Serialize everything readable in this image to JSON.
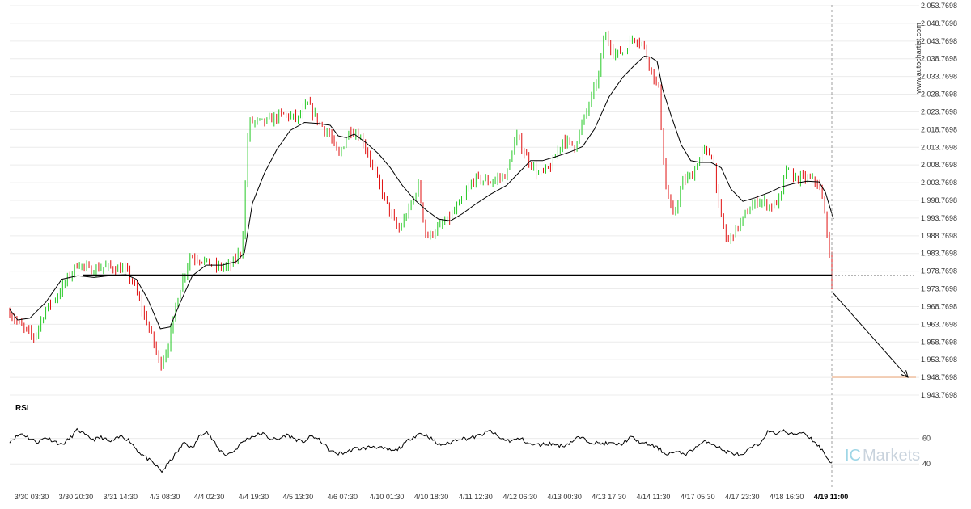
{
  "watermark": "www.autochartist.com",
  "brand": {
    "prefix": "IC",
    "name": "Markets"
  },
  "colors": {
    "up_candle": "#26c926",
    "down_candle": "#e01010",
    "moving_average": "#000000",
    "support_line": "#000000",
    "target_line": "#e8a070",
    "projection_arrow": "#000000"
  },
  "chart_data": [
    {
      "type": "candlestick",
      "title": "",
      "y_tick_labels": [
        "2,053.7698",
        "2,048.7698",
        "2,043.7698",
        "2,038.7698",
        "2,033.7698",
        "2,028.7698",
        "2,023.7698",
        "2,018.7698",
        "2,013.7698",
        "2,008.7698",
        "2,003.7698",
        "1,998.7698",
        "1,993.7698",
        "1,988.7698",
        "1,983.7698",
        "1,978.7698",
        "1,973.7698",
        "1,968.7698",
        "1,963.7698",
        "1,958.7698",
        "1,953.7698",
        "1,948.7698",
        "1,943.7698"
      ],
      "ylim": [
        1943.7698,
        2053.7698
      ],
      "x_tick_labels": [
        "3/30 03:30",
        "3/30 20:30",
        "3/31 14:30",
        "4/3 08:30",
        "4/4 02:30",
        "4/4 19:30",
        "4/5 13:30",
        "4/6 07:30",
        "4/10 01:30",
        "4/10 18:30",
        "4/11 12:30",
        "4/12 06:30",
        "4/13 00:30",
        "4/13 17:30",
        "4/14 11:30",
        "4/17 05:30",
        "4/17 23:30",
        "4/18 16:30",
        "4/19 11:00"
      ],
      "current_x_label": "4/19 11:00",
      "support_level": 1977.6,
      "target_level": 1948.8,
      "moving_average_keypoints": [
        [
          0,
          1968.0
        ],
        [
          10,
          1965.0
        ],
        [
          25,
          1965.5
        ],
        [
          45,
          1970.0
        ],
        [
          65,
          1976.5
        ],
        [
          85,
          1977.5
        ],
        [
          105,
          1977.0
        ],
        [
          125,
          1977.5
        ],
        [
          145,
          1977.8
        ],
        [
          158,
          1976.5
        ],
        [
          172,
          1971.0
        ],
        [
          188,
          1962.5
        ],
        [
          200,
          1963.0
        ],
        [
          212,
          1969.5
        ],
        [
          228,
          1977.5
        ],
        [
          245,
          1980.5
        ],
        [
          265,
          1980.5
        ],
        [
          283,
          1981.5
        ],
        [
          293,
          1984.0
        ],
        [
          303,
          1998.0
        ],
        [
          318,
          2006.5
        ],
        [
          333,
          2013.0
        ],
        [
          350,
          2018.5
        ],
        [
          368,
          2020.8
        ],
        [
          385,
          2020.5
        ],
        [
          400,
          2020.0
        ],
        [
          410,
          2017.0
        ],
        [
          420,
          2016.5
        ],
        [
          430,
          2017.5
        ],
        [
          445,
          2015.0
        ],
        [
          460,
          2012.0
        ],
        [
          475,
          2008.0
        ],
        [
          490,
          2003.0
        ],
        [
          505,
          1999.0
        ],
        [
          520,
          1996.0
        ],
        [
          535,
          1993.5
        ],
        [
          550,
          1993.0
        ],
        [
          565,
          1995.0
        ],
        [
          580,
          1997.5
        ],
        [
          600,
          2000.5
        ],
        [
          620,
          2003.0
        ],
        [
          635,
          2006.5
        ],
        [
          650,
          2010.0
        ],
        [
          665,
          2010.0
        ],
        [
          680,
          2011.0
        ],
        [
          700,
          2012.5
        ],
        [
          715,
          2014.0
        ],
        [
          730,
          2019.0
        ],
        [
          748,
          2028.0
        ],
        [
          765,
          2033.5
        ],
        [
          780,
          2037.0
        ],
        [
          792,
          2039.5
        ],
        [
          800,
          2039.2
        ],
        [
          808,
          2038.0
        ],
        [
          815,
          2030.0
        ],
        [
          825,
          2023.0
        ],
        [
          838,
          2014.5
        ],
        [
          850,
          2010.0
        ],
        [
          862,
          2009.5
        ],
        [
          875,
          2009.5
        ],
        [
          888,
          2008.0
        ],
        [
          900,
          2002.0
        ],
        [
          915,
          1998.5
        ],
        [
          930,
          1999.5
        ],
        [
          948,
          2001.0
        ],
        [
          962,
          2002.5
        ],
        [
          978,
          2003.5
        ],
        [
          995,
          2004.2
        ],
        [
          1010,
          2004.0
        ],
        [
          1018,
          2001.0
        ],
        [
          1028,
          1993.5
        ]
      ],
      "price_path_keypoints": [
        [
          0,
          1967
        ],
        [
          15,
          1963
        ],
        [
          30,
          1960
        ],
        [
          45,
          1968
        ],
        [
          60,
          1972
        ],
        [
          70,
          1976
        ],
        [
          85,
          1981
        ],
        [
          100,
          1979
        ],
        [
          120,
          1980
        ],
        [
          145,
          1979
        ],
        [
          155,
          1975
        ],
        [
          165,
          1968
        ],
        [
          175,
          1962
        ],
        [
          188,
          1952
        ],
        [
          198,
          1958
        ],
        [
          210,
          1972
        ],
        [
          225,
          1983
        ],
        [
          240,
          1982
        ],
        [
          258,
          1980
        ],
        [
          275,
          1980
        ],
        [
          290,
          1985
        ],
        [
          298,
          2021
        ],
        [
          320,
          2021
        ],
        [
          340,
          2023
        ],
        [
          360,
          2022
        ],
        [
          372,
          2026
        ],
        [
          385,
          2021
        ],
        [
          400,
          2017
        ],
        [
          410,
          2011
        ],
        [
          425,
          2019
        ],
        [
          440,
          2016
        ],
        [
          455,
          2007
        ],
        [
          470,
          1998
        ],
        [
          485,
          1990
        ],
        [
          500,
          1997
        ],
        [
          510,
          2003
        ],
        [
          520,
          1988
        ],
        [
          535,
          1991
        ],
        [
          550,
          1994
        ],
        [
          565,
          1999
        ],
        [
          580,
          2005
        ],
        [
          600,
          2004
        ],
        [
          620,
          2006
        ],
        [
          632,
          2017
        ],
        [
          645,
          2011
        ],
        [
          660,
          2006
        ],
        [
          675,
          2008
        ],
        [
          690,
          2016
        ],
        [
          705,
          2014
        ],
        [
          720,
          2024
        ],
        [
          735,
          2034
        ],
        [
          742,
          2046
        ],
        [
          755,
          2040
        ],
        [
          768,
          2041
        ],
        [
          778,
          2045
        ],
        [
          790,
          2043
        ],
        [
          800,
          2036
        ],
        [
          810,
          2030
        ],
        [
          818,
          2003
        ],
        [
          828,
          1994
        ],
        [
          840,
          2004
        ],
        [
          852,
          2006
        ],
        [
          865,
          2013
        ],
        [
          878,
          2011
        ],
        [
          885,
          1997
        ],
        [
          895,
          1987
        ],
        [
          908,
          1991
        ],
        [
          922,
          1996
        ],
        [
          935,
          1999
        ],
        [
          950,
          1997
        ],
        [
          962,
          1999
        ],
        [
          968,
          2008
        ],
        [
          980,
          2005
        ],
        [
          995,
          2005
        ],
        [
          1008,
          2004
        ],
        [
          1015,
          1998
        ],
        [
          1020,
          1990
        ],
        [
          1026,
          1975
        ]
      ],
      "rsi": {
        "title": "RSI",
        "tick_labels": [
          "60",
          "40"
        ],
        "levels": [
          60,
          40
        ],
        "ylim": [
          30,
          75
        ],
        "keypoints": [
          [
            0,
            58
          ],
          [
            15,
            64
          ],
          [
            25,
            60
          ],
          [
            35,
            57
          ],
          [
            45,
            61
          ],
          [
            55,
            58
          ],
          [
            65,
            55
          ],
          [
            75,
            60
          ],
          [
            85,
            67
          ],
          [
            95,
            62
          ],
          [
            105,
            59
          ],
          [
            115,
            61
          ],
          [
            125,
            57
          ],
          [
            140,
            62
          ],
          [
            150,
            58
          ],
          [
            160,
            50
          ],
          [
            170,
            45
          ],
          [
            180,
            40
          ],
          [
            190,
            34
          ],
          [
            200,
            42
          ],
          [
            210,
            50
          ],
          [
            218,
            57
          ],
          [
            228,
            52
          ],
          [
            238,
            63
          ],
          [
            245,
            66
          ],
          [
            252,
            60
          ],
          [
            260,
            52
          ],
          [
            270,
            47
          ],
          [
            280,
            50
          ],
          [
            290,
            57
          ],
          [
            300,
            61
          ],
          [
            315,
            64
          ],
          [
            325,
            60
          ],
          [
            335,
            59
          ],
          [
            345,
            63
          ],
          [
            355,
            60
          ],
          [
            365,
            57
          ],
          [
            378,
            62
          ],
          [
            390,
            57
          ],
          [
            400,
            50
          ],
          [
            410,
            48
          ],
          [
            420,
            49
          ],
          [
            430,
            52
          ],
          [
            440,
            52
          ],
          [
            455,
            54
          ],
          [
            465,
            52
          ],
          [
            480,
            50
          ],
          [
            490,
            54
          ],
          [
            500,
            60
          ],
          [
            512,
            64
          ],
          [
            522,
            62
          ],
          [
            535,
            55
          ],
          [
            548,
            56
          ],
          [
            560,
            60
          ],
          [
            572,
            60
          ],
          [
            585,
            62
          ],
          [
            600,
            66
          ],
          [
            612,
            60
          ],
          [
            625,
            58
          ],
          [
            638,
            60
          ],
          [
            650,
            55
          ],
          [
            660,
            55
          ],
          [
            675,
            56
          ],
          [
            690,
            54
          ],
          [
            700,
            57
          ],
          [
            710,
            61
          ],
          [
            722,
            58
          ],
          [
            735,
            56
          ],
          [
            750,
            56
          ],
          [
            762,
            55
          ],
          [
            775,
            61
          ],
          [
            790,
            56
          ],
          [
            800,
            55
          ],
          [
            810,
            52
          ],
          [
            818,
            48
          ],
          [
            830,
            49
          ],
          [
            845,
            48
          ],
          [
            858,
            54
          ],
          [
            870,
            58
          ],
          [
            880,
            55
          ],
          [
            892,
            50
          ],
          [
            905,
            48
          ],
          [
            915,
            46
          ],
          [
            925,
            53
          ],
          [
            935,
            55
          ],
          [
            945,
            65
          ],
          [
            955,
            64
          ],
          [
            965,
            66
          ],
          [
            975,
            63
          ],
          [
            990,
            65
          ],
          [
            1000,
            60
          ],
          [
            1008,
            55
          ],
          [
            1015,
            50
          ],
          [
            1020,
            45
          ],
          [
            1027,
            39
          ]
        ]
      }
    }
  ]
}
